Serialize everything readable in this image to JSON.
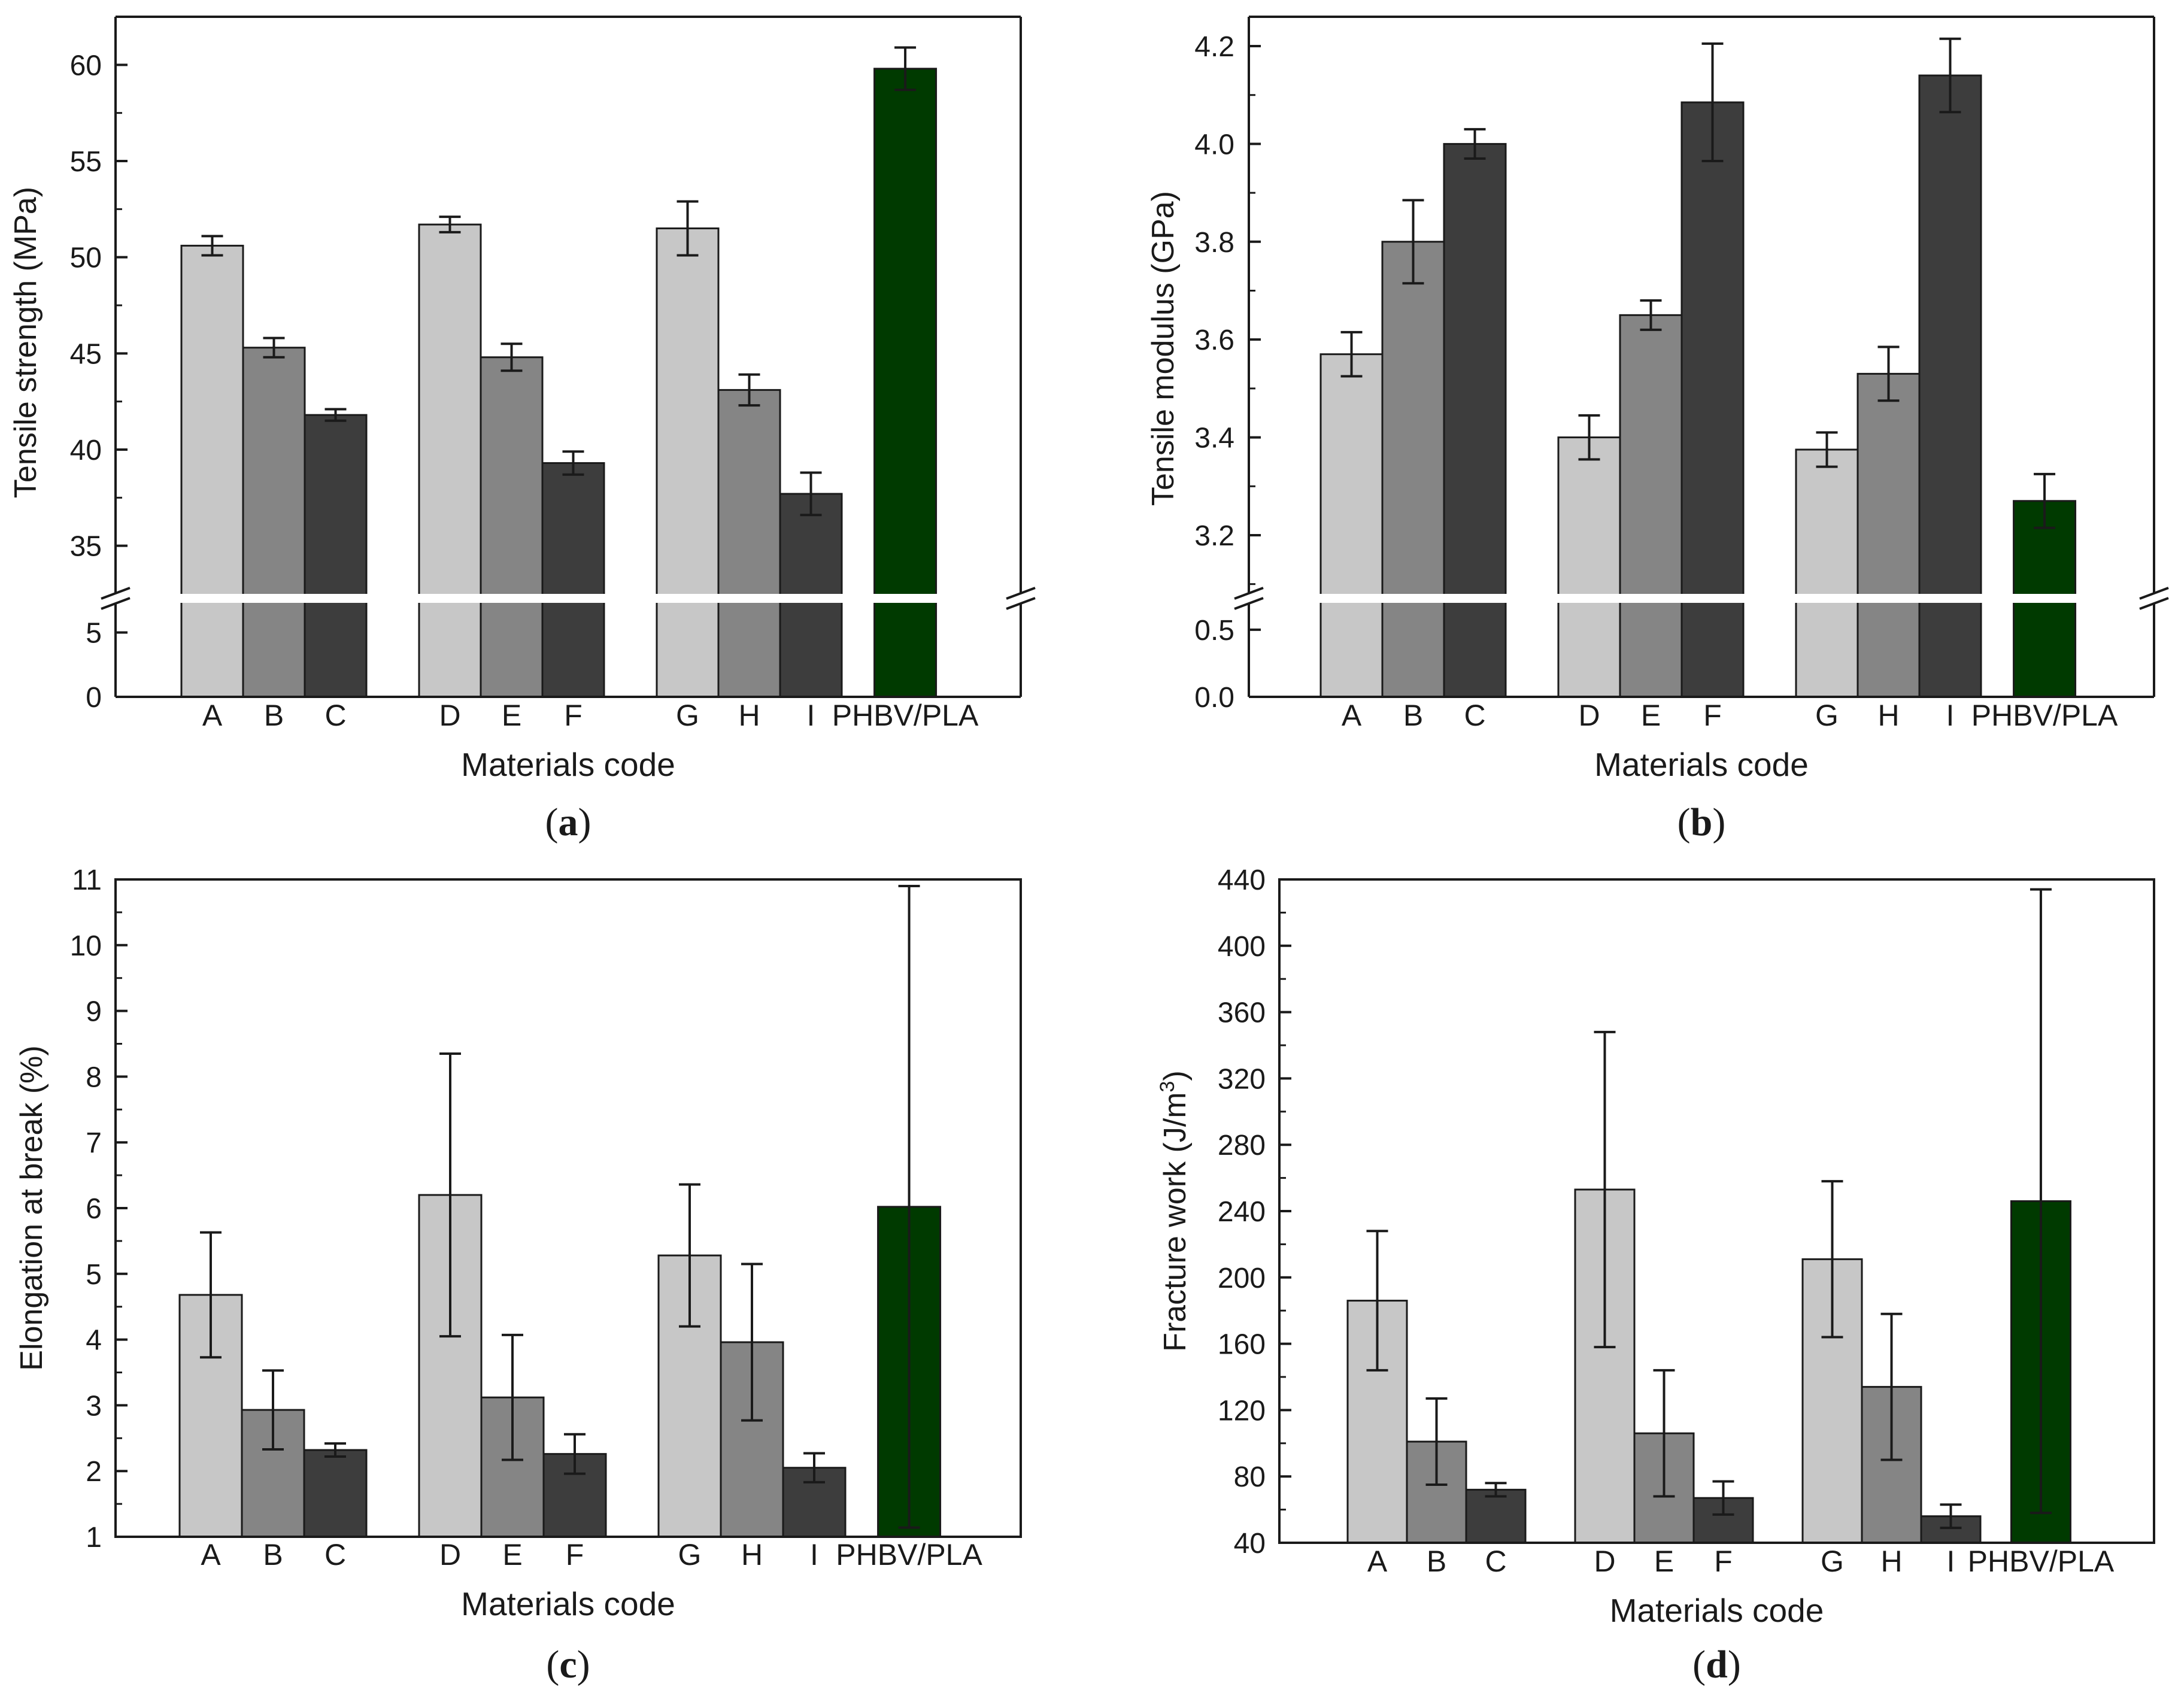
{
  "chart_data": [
    {
      "panel": "a",
      "caption_open": "(",
      "caption_letter": "a",
      "caption_close": ")",
      "type": "bar",
      "xlabel": "Materials code",
      "ylabel": "Tensile strength (MPa)",
      "axis_break": true,
      "upper_range": [
        32.5,
        62.5
      ],
      "lower_range": [
        0,
        7.3
      ],
      "upper_ticks": [
        "35",
        "40",
        "45",
        "50",
        "55",
        "60"
      ],
      "lower_ticks": [
        "0",
        "5"
      ],
      "categories": [
        "A",
        "B",
        "C",
        "D",
        "E",
        "F",
        "G",
        "H",
        "I",
        "PHBV/PLA"
      ],
      "values": [
        50.6,
        45.3,
        41.8,
        51.7,
        44.8,
        39.3,
        51.5,
        43.1,
        37.7,
        59.8
      ],
      "errors": [
        0.5,
        0.5,
        0.3,
        0.4,
        0.7,
        0.6,
        1.4,
        0.8,
        1.1,
        1.1
      ]
    },
    {
      "panel": "b",
      "caption_open": "(",
      "caption_letter": "b",
      "caption_close": ")",
      "type": "bar",
      "xlabel": "Materials code",
      "ylabel": "Tensile modulus (GPa)",
      "axis_break": true,
      "upper_range": [
        3.08,
        4.26
      ],
      "lower_range": [
        0,
        0.7
      ],
      "upper_ticks": [
        "3.2",
        "3.4",
        "3.6",
        "3.8",
        "4.0",
        "4.2"
      ],
      "lower_ticks": [
        "0.0",
        "0.5"
      ],
      "categories": [
        "A",
        "B",
        "C",
        "D",
        "E",
        "F",
        "G",
        "H",
        "I",
        "PHBV/PLA"
      ],
      "values": [
        3.57,
        3.8,
        4.0,
        3.4,
        3.65,
        4.085,
        3.375,
        3.53,
        4.14,
        3.27
      ],
      "errors": [
        0.045,
        0.085,
        0.03,
        0.045,
        0.03,
        0.12,
        0.035,
        0.055,
        0.075,
        0.055
      ]
    },
    {
      "panel": "c",
      "caption_open": "(",
      "caption_letter": "c",
      "caption_close": ")",
      "type": "bar",
      "xlabel": "Materials code",
      "ylabel": "Elongation at break (%)",
      "ylim": [
        1,
        11
      ],
      "yticks": [
        "1",
        "2",
        "3",
        "4",
        "5",
        "6",
        "7",
        "8",
        "9",
        "10",
        "11"
      ],
      "categories": [
        "A",
        "B",
        "C",
        "D",
        "E",
        "F",
        "G",
        "H",
        "I",
        "PHBV/PLA"
      ],
      "values": [
        4.68,
        2.93,
        2.32,
        6.2,
        3.12,
        2.26,
        5.28,
        3.96,
        2.05,
        6.02
      ],
      "errors": [
        0.95,
        0.6,
        0.1,
        2.15,
        0.95,
        0.3,
        1.08,
        1.19,
        0.22,
        4.88
      ]
    },
    {
      "panel": "d",
      "caption_open": "(",
      "caption_letter": "d",
      "caption_close": ")",
      "type": "bar",
      "xlabel": "Materials code",
      "ylabel_main": "Fracture work (J/m",
      "ylabel_sup": "3",
      "ylabel_close": ")",
      "ylim": [
        40,
        440
      ],
      "yticks": [
        "40",
        "80",
        "120",
        "160",
        "200",
        "240",
        "280",
        "320",
        "360",
        "400",
        "440"
      ],
      "categories": [
        "A",
        "B",
        "C",
        "D",
        "E",
        "F",
        "G",
        "H",
        "I",
        "PHBV/PLA"
      ],
      "values": [
        186,
        101,
        72,
        253,
        106,
        67,
        211,
        134,
        56,
        246
      ],
      "errors": [
        42,
        26,
        4,
        95,
        38,
        10,
        47,
        44,
        7,
        188
      ]
    }
  ],
  "colors": {
    "light": "#c7c7c7",
    "medium": "#858585",
    "dark": "#3d3d3d",
    "accent": "#003a00",
    "axis": "#1a1a1a",
    "background": "#ffffff"
  }
}
